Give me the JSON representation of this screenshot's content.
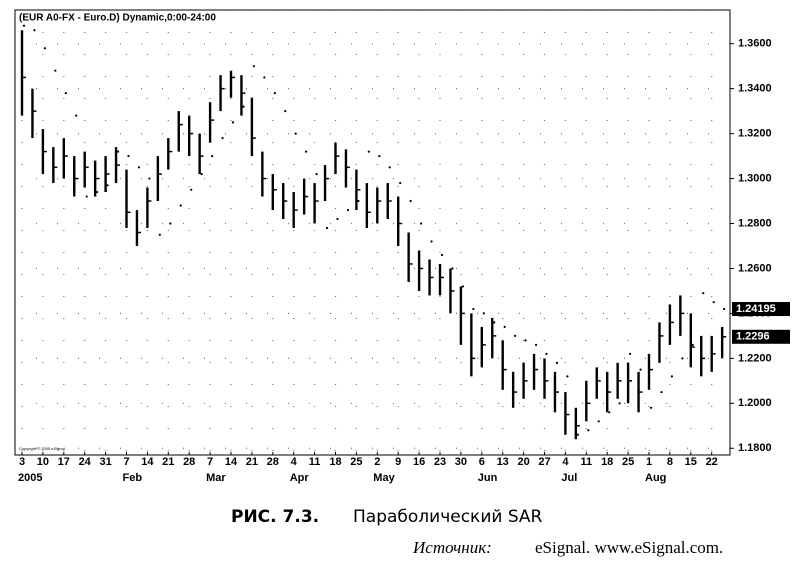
{
  "chart_data": {
    "type": "hlc",
    "title": "(EUR A0-FX - Euro.D) Dynamic,0:00-24:00",
    "copyright": "Copyright © 2005 eSignal",
    "ylim": [
      1.177,
      1.375
    ],
    "yticks": [
      {
        "value": 1.18,
        "label": "1.1800"
      },
      {
        "value": 1.2,
        "label": "1.2000"
      },
      {
        "value": 1.22,
        "label": "1.2200"
      },
      {
        "value": 1.24,
        "label": "1.2400"
      },
      {
        "value": 1.26,
        "label": "1.2600"
      },
      {
        "value": 1.28,
        "label": "1.2800"
      },
      {
        "value": 1.3,
        "label": "1.3000"
      },
      {
        "value": 1.32,
        "label": "1.3200"
      },
      {
        "value": 1.34,
        "label": "1.3400"
      },
      {
        "value": 1.36,
        "label": "1.3600"
      }
    ],
    "xticks": [
      {
        "value": 0,
        "label": "3"
      },
      {
        "value": 2,
        "label": "10"
      },
      {
        "value": 4,
        "label": "17"
      },
      {
        "value": 6,
        "label": "24"
      },
      {
        "value": 8,
        "label": "31"
      },
      {
        "value": 10,
        "label": "7"
      },
      {
        "value": 12,
        "label": "14"
      },
      {
        "value": 14,
        "label": "21"
      },
      {
        "value": 16,
        "label": "28"
      },
      {
        "value": 18,
        "label": "7"
      },
      {
        "value": 20,
        "label": "14"
      },
      {
        "value": 22,
        "label": "21"
      },
      {
        "value": 24,
        "label": "28"
      },
      {
        "value": 26,
        "label": "4"
      },
      {
        "value": 28,
        "label": "11"
      },
      {
        "value": 30,
        "label": "18"
      },
      {
        "value": 32,
        "label": "25"
      },
      {
        "value": 34,
        "label": "2"
      },
      {
        "value": 36,
        "label": "9"
      },
      {
        "value": 38,
        "label": "16"
      },
      {
        "value": 40,
        "label": "23"
      },
      {
        "value": 42,
        "label": "30"
      },
      {
        "value": 44,
        "label": "6"
      },
      {
        "value": 46,
        "label": "13"
      },
      {
        "value": 48,
        "label": "20"
      },
      {
        "value": 50,
        "label": "27"
      },
      {
        "value": 52,
        "label": "4"
      },
      {
        "value": 54,
        "label": "11"
      },
      {
        "value": 56,
        "label": "18"
      },
      {
        "value": 58,
        "label": "25"
      },
      {
        "value": 60,
        "label": "1"
      },
      {
        "value": 62,
        "label": "8"
      },
      {
        "value": 64,
        "label": "15"
      },
      {
        "value": 66,
        "label": "22"
      }
    ],
    "month_labels": [
      "2005",
      "Feb",
      "Mar",
      "Apr",
      "May",
      "Jun",
      "Jul",
      "Aug"
    ],
    "grid": true,
    "color": "#000000",
    "high": [
      1.366,
      1.34,
      1.322,
      1.314,
      1.318,
      1.31,
      1.312,
      1.308,
      1.31,
      1.314,
      1.304,
      1.286,
      1.296,
      1.31,
      1.318,
      1.33,
      1.328,
      1.32,
      1.334,
      1.346,
      1.348,
      1.346,
      1.336,
      1.312,
      1.302,
      1.298,
      1.294,
      1.3,
      1.298,
      1.306,
      1.316,
      1.313,
      1.304,
      1.298,
      1.296,
      1.298,
      1.292,
      1.276,
      1.268,
      1.264,
      1.262,
      1.26,
      1.252,
      1.24,
      1.234,
      1.238,
      1.228,
      1.214,
      1.218,
      1.222,
      1.22,
      1.214,
      1.205,
      1.198,
      1.21,
      1.216,
      1.214,
      1.218,
      1.218,
      1.214,
      1.222,
      1.236,
      1.244,
      1.248,
      1.24,
      1.23,
      1.23,
      1.234
    ],
    "low": [
      1.328,
      1.318,
      1.302,
      1.298,
      1.3,
      1.292,
      1.296,
      1.292,
      1.294,
      1.298,
      1.278,
      1.27,
      1.278,
      1.29,
      1.304,
      1.312,
      1.31,
      1.302,
      1.316,
      1.33,
      1.336,
      1.328,
      1.31,
      1.292,
      1.286,
      1.282,
      1.278,
      1.284,
      1.28,
      1.29,
      1.302,
      1.296,
      1.286,
      1.278,
      1.28,
      1.282,
      1.27,
      1.254,
      1.25,
      1.248,
      1.248,
      1.24,
      1.226,
      1.212,
      1.216,
      1.22,
      1.206,
      1.198,
      1.202,
      1.206,
      1.202,
      1.196,
      1.186,
      1.184,
      1.192,
      1.202,
      1.196,
      1.202,
      1.2,
      1.196,
      1.206,
      1.218,
      1.226,
      1.23,
      1.216,
      1.212,
      1.214,
      1.22
    ],
    "close": [
      1.345,
      1.33,
      1.312,
      1.305,
      1.31,
      1.3,
      1.305,
      1.3,
      1.302,
      1.306,
      1.285,
      1.276,
      1.29,
      1.302,
      1.312,
      1.324,
      1.32,
      1.31,
      1.326,
      1.34,
      1.345,
      1.338,
      1.318,
      1.3,
      1.295,
      1.29,
      1.286,
      1.292,
      1.29,
      1.3,
      1.31,
      1.305,
      1.295,
      1.285,
      1.29,
      1.29,
      1.28,
      1.262,
      1.26,
      1.256,
      1.256,
      1.25,
      1.24,
      1.22,
      1.226,
      1.23,
      1.215,
      1.205,
      1.21,
      1.215,
      1.21,
      1.205,
      1.195,
      1.19,
      1.2,
      1.21,
      1.205,
      1.21,
      1.21,
      1.205,
      1.215,
      1.23,
      1.236,
      1.24,
      1.225,
      1.22,
      1.222,
      1.2296
    ],
    "sar": [
      1.368,
      1.366,
      1.358,
      1.348,
      1.338,
      1.328,
      1.292,
      1.294,
      1.297,
      1.312,
      1.31,
      1.305,
      1.3,
      1.275,
      1.28,
      1.288,
      1.295,
      1.302,
      1.31,
      1.318,
      1.325,
      1.332,
      1.35,
      1.345,
      1.338,
      1.33,
      1.32,
      1.312,
      1.302,
      1.278,
      1.282,
      1.286,
      1.29,
      1.312,
      1.31,
      1.305,
      1.298,
      1.29,
      1.28,
      1.272,
      1.266,
      1.26,
      1.252,
      1.242,
      1.24,
      1.236,
      1.234,
      1.23,
      1.228,
      1.226,
      1.222,
      1.218,
      1.212,
      1.186,
      1.188,
      1.192,
      1.196,
      1.2,
      1.222,
      1.215,
      1.198,
      1.205,
      1.212,
      1.22,
      1.226,
      1.249,
      1.245,
      1.24195
    ]
  },
  "caption": {
    "number": "РИС. 7.3.",
    "text": "Параболический SAR"
  },
  "source": {
    "label": "Источник:",
    "text": "eSignal. www.eSignal.com."
  }
}
